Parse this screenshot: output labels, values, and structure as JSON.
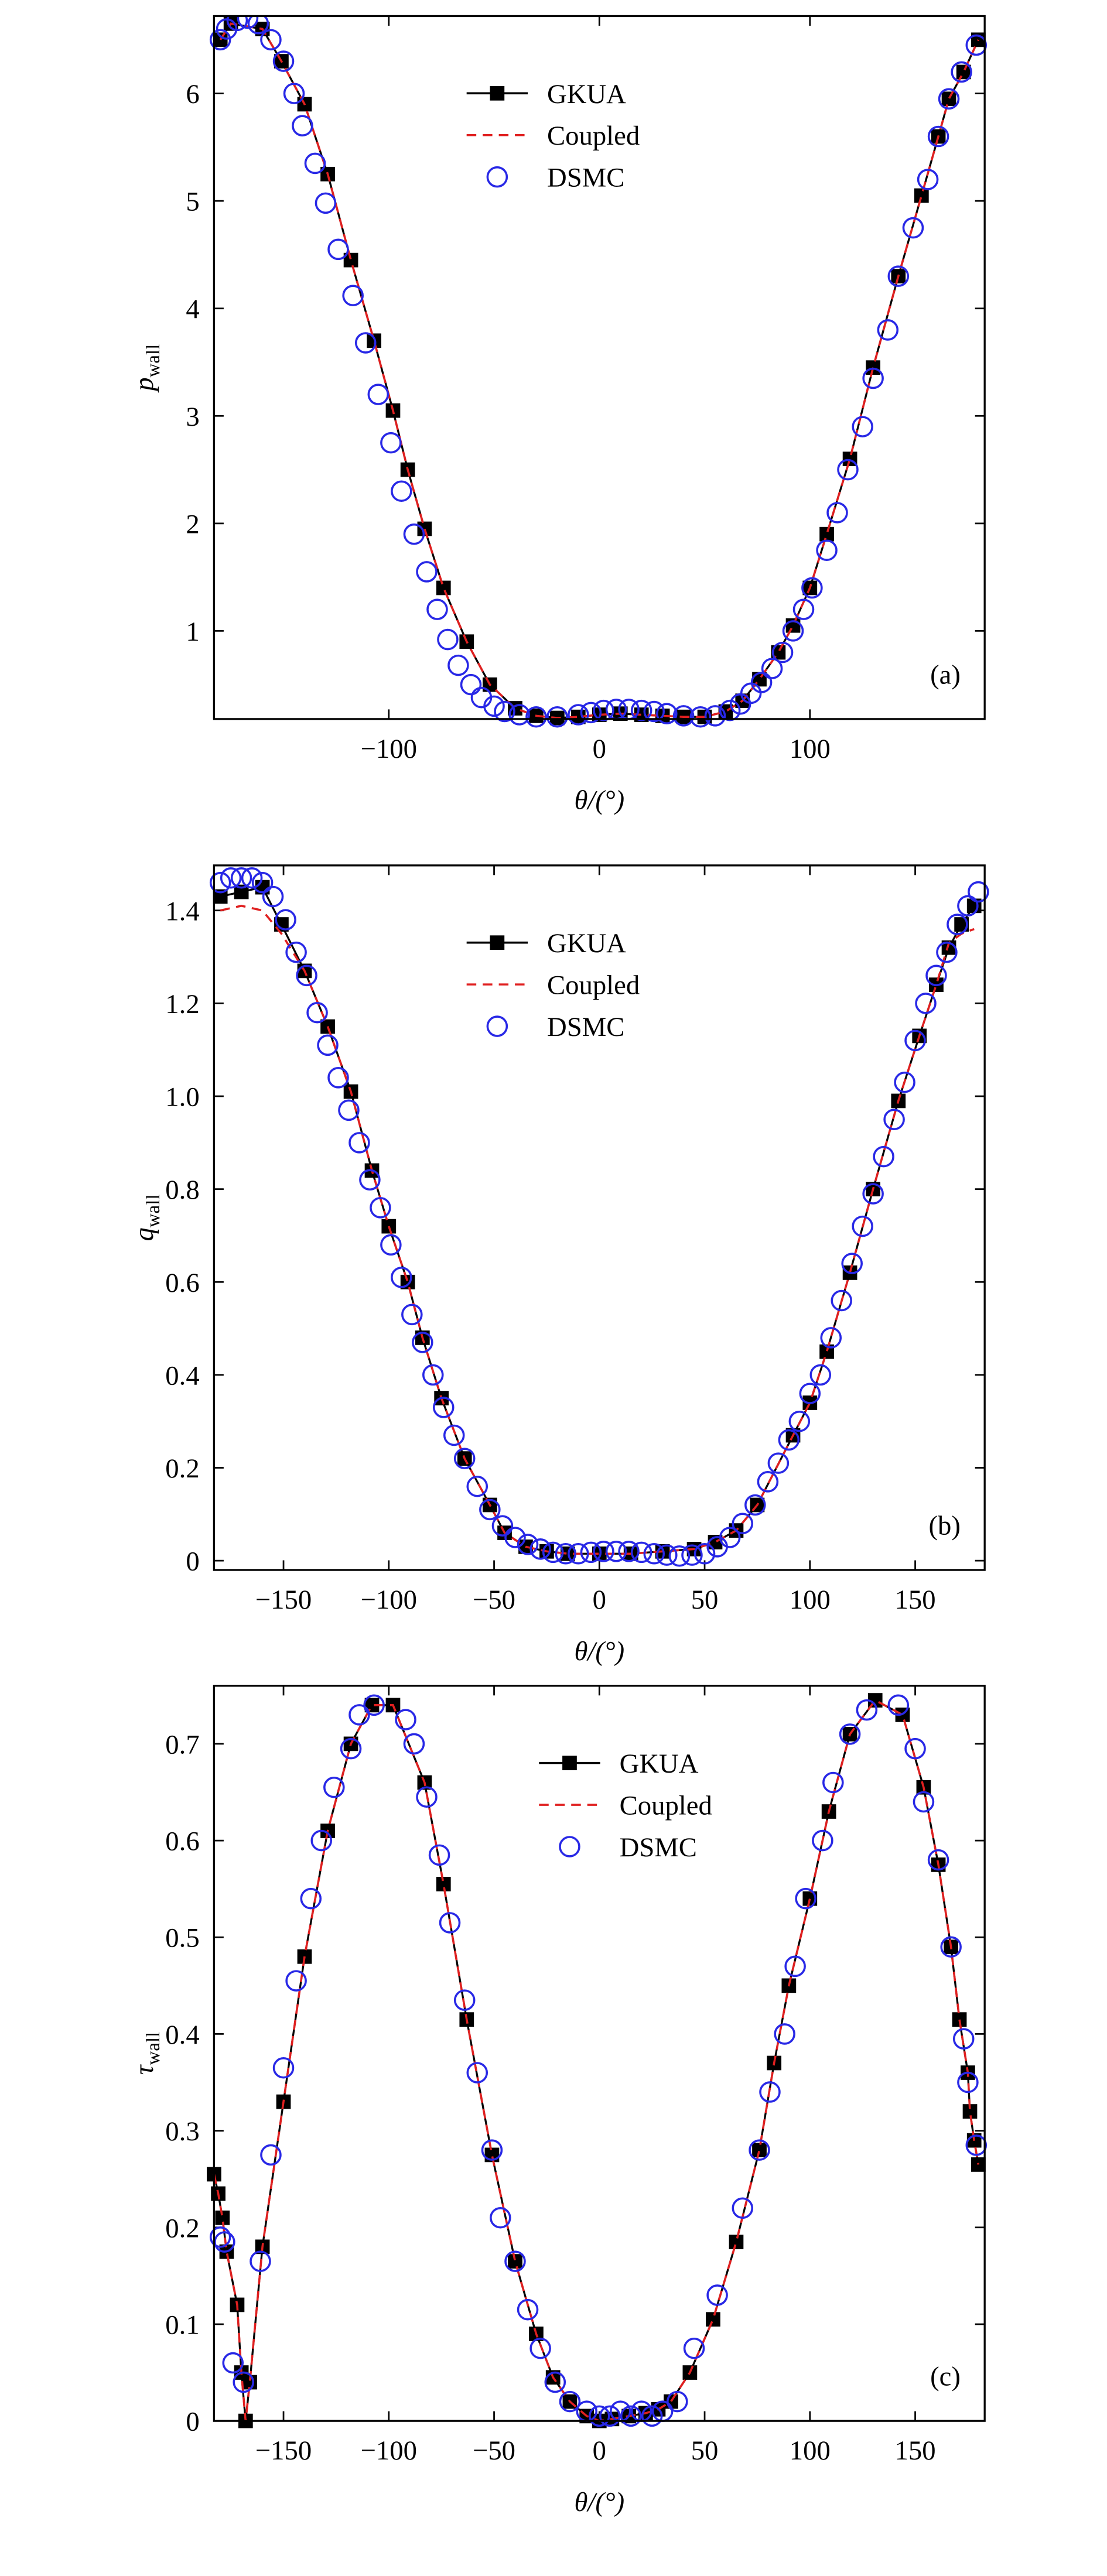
{
  "chart_data": [
    {
      "type": "line",
      "panel_label": "(a)",
      "xlabel": "θ/(°)",
      "ylabel": "p",
      "ylabel_sub": "wall",
      "xlim": [
        -183,
        183
      ],
      "ylim": [
        0.18,
        6.72
      ],
      "xticks": [
        {
          "value": -100,
          "label": "−100"
        },
        0,
        100
      ],
      "yticks": [
        1,
        2,
        3,
        4,
        5,
        6
      ],
      "legend": "upper center",
      "series": [
        {
          "name": "GKUA",
          "color": "#000000",
          "marker": "square",
          "dash": false,
          "x": [
            -180,
            -175,
            -160,
            -151,
            -140,
            -129,
            -118,
            -107,
            -98,
            -91,
            -83,
            -74,
            -63,
            -52,
            -40,
            -30,
            -20,
            -10,
            0,
            10,
            20,
            30,
            40,
            50,
            60,
            68,
            76,
            85,
            92,
            100,
            108,
            119,
            130,
            142,
            153,
            161,
            166,
            173,
            180
          ],
          "values": [
            6.5,
            6.65,
            6.6,
            6.3,
            5.9,
            5.25,
            4.45,
            3.7,
            3.05,
            2.5,
            1.95,
            1.4,
            0.9,
            0.5,
            0.28,
            0.21,
            0.19,
            0.2,
            0.22,
            0.23,
            0.22,
            0.21,
            0.2,
            0.2,
            0.25,
            0.35,
            0.55,
            0.8,
            1.05,
            1.4,
            1.9,
            2.6,
            3.45,
            4.3,
            5.05,
            5.6,
            5.95,
            6.2,
            6.5
          ]
        },
        {
          "name": "Coupled",
          "color": "#e02020",
          "marker": "none",
          "dash": true,
          "x": [
            -180,
            -175,
            -160,
            -151,
            -140,
            -129,
            -118,
            -107,
            -98,
            -91,
            -83,
            -74,
            -63,
            -52,
            -40,
            -30,
            -20,
            -10,
            0,
            10,
            20,
            30,
            40,
            50,
            60,
            68,
            76,
            85,
            92,
            100,
            108,
            119,
            130,
            142,
            153,
            161,
            166,
            173,
            180
          ],
          "values": [
            6.5,
            6.65,
            6.6,
            6.3,
            5.9,
            5.25,
            4.45,
            3.7,
            3.05,
            2.5,
            1.95,
            1.4,
            0.9,
            0.5,
            0.28,
            0.21,
            0.19,
            0.2,
            0.22,
            0.23,
            0.22,
            0.21,
            0.2,
            0.2,
            0.25,
            0.35,
            0.55,
            0.8,
            1.05,
            1.4,
            1.9,
            2.6,
            3.45,
            4.3,
            5.05,
            5.6,
            5.95,
            6.2,
            6.5
          ]
        },
        {
          "name": "DSMC",
          "color": "#2828e6",
          "marker": "circle",
          "dash": false,
          "x": [
            -180,
            -177,
            -172,
            -167,
            -162,
            -156,
            -150,
            -145,
            -141,
            -135,
            -130,
            -124,
            -117,
            -111,
            -105,
            -99,
            -94,
            -88,
            -82,
            -77,
            -72,
            -67,
            -61,
            -56,
            -50,
            -45,
            -38,
            -30,
            -20,
            -10,
            -4,
            2,
            8,
            14,
            20,
            26,
            32,
            40,
            48,
            55,
            62,
            67,
            72,
            77,
            82,
            87,
            92,
            97,
            101,
            108,
            113,
            118,
            125,
            130,
            137,
            142,
            149,
            156,
            161,
            166,
            172,
            179
          ],
          "values": [
            6.5,
            6.6,
            6.68,
            6.7,
            6.65,
            6.5,
            6.3,
            6.0,
            5.7,
            5.35,
            4.98,
            4.55,
            4.12,
            3.68,
            3.2,
            2.75,
            2.3,
            1.9,
            1.55,
            1.2,
            0.92,
            0.68,
            0.5,
            0.38,
            0.3,
            0.25,
            0.22,
            0.2,
            0.2,
            0.22,
            0.24,
            0.26,
            0.27,
            0.27,
            0.26,
            0.25,
            0.23,
            0.21,
            0.2,
            0.21,
            0.26,
            0.32,
            0.42,
            0.52,
            0.65,
            0.8,
            1.0,
            1.2,
            1.4,
            1.75,
            2.1,
            2.5,
            2.9,
            3.35,
            3.8,
            4.3,
            4.75,
            5.2,
            5.6,
            5.95,
            6.2,
            6.45
          ]
        }
      ]
    },
    {
      "type": "line",
      "panel_label": "(b)",
      "xlabel": "θ/(°)",
      "ylabel": "q",
      "ylabel_sub": "wall",
      "xlim": [
        -183,
        183
      ],
      "ylim": [
        -0.02,
        1.497
      ],
      "xticks": [
        {
          "value": -150,
          "label": "−150"
        },
        {
          "value": -100,
          "label": "−100"
        },
        {
          "value": -50,
          "label": "−50"
        },
        0,
        50,
        100,
        150
      ],
      "yticks": [
        0,
        0.2,
        0.4,
        0.6,
        0.8,
        {
          "value": 1,
          "label": "1.0"
        },
        1.2,
        1.4
      ],
      "legend": "upper center",
      "series": [
        {
          "name": "GKUA",
          "color": "#000000",
          "marker": "square",
          "dash": false,
          "x": [
            -180,
            -170,
            -160,
            -151,
            -140,
            -129,
            -118,
            -108,
            -100,
            -91,
            -84,
            -75,
            -64,
            -52,
            -45,
            -35,
            -25,
            -15,
            0,
            15,
            30,
            45,
            55,
            65,
            75,
            92,
            100,
            108,
            119,
            130,
            142,
            152,
            160,
            166,
            172,
            178
          ],
          "values": [
            1.43,
            1.44,
            1.45,
            1.37,
            1.27,
            1.15,
            1.01,
            0.84,
            0.72,
            0.6,
            0.48,
            0.35,
            0.22,
            0.12,
            0.06,
            0.03,
            0.02,
            0.015,
            0.015,
            0.015,
            0.02,
            0.025,
            0.04,
            0.065,
            0.12,
            0.27,
            0.34,
            0.45,
            0.62,
            0.8,
            0.99,
            1.13,
            1.24,
            1.32,
            1.37,
            1.41
          ]
        },
        {
          "name": "Coupled",
          "color": "#e02020",
          "marker": "none",
          "dash": true,
          "x": [
            -180,
            -170,
            -160,
            -151,
            -140,
            -129,
            -118,
            -108,
            -100,
            -91,
            -84,
            -75,
            -64,
            -52,
            -45,
            -35,
            -25,
            -15,
            0,
            15,
            30,
            45,
            55,
            65,
            75,
            92,
            100,
            108,
            119,
            130,
            142,
            152,
            160,
            166,
            172,
            178
          ],
          "values": [
            1.4,
            1.41,
            1.4,
            1.35,
            1.27,
            1.15,
            1.01,
            0.84,
            0.72,
            0.6,
            0.48,
            0.35,
            0.22,
            0.12,
            0.06,
            0.03,
            0.02,
            0.015,
            0.015,
            0.015,
            0.02,
            0.025,
            0.04,
            0.065,
            0.12,
            0.27,
            0.34,
            0.45,
            0.62,
            0.8,
            0.99,
            1.13,
            1.24,
            1.33,
            1.35,
            1.36
          ]
        },
        {
          "name": "DSMC",
          "color": "#2828e6",
          "marker": "circle",
          "dash": false,
          "x": [
            -180,
            -175,
            -170,
            -165,
            -160,
            -155,
            -149,
            -144,
            -139,
            -134,
            -129,
            -124,
            -119,
            -114,
            -109,
            -104,
            -99,
            -94,
            -89,
            -84,
            -79,
            -74,
            -69,
            -64,
            -58,
            -52,
            -46,
            -40,
            -34,
            -28,
            -22,
            -16,
            -10,
            -4,
            2,
            8,
            14,
            20,
            26,
            32,
            38,
            44,
            50,
            56,
            62,
            68,
            74,
            80,
            85,
            90,
            95,
            100,
            105,
            110,
            115,
            120,
            125,
            130,
            135,
            140,
            145,
            150,
            155,
            160,
            165,
            170,
            175,
            180
          ],
          "values": [
            1.46,
            1.47,
            1.47,
            1.47,
            1.46,
            1.43,
            1.38,
            1.31,
            1.26,
            1.18,
            1.11,
            1.04,
            0.97,
            0.9,
            0.82,
            0.76,
            0.68,
            0.61,
            0.53,
            0.47,
            0.4,
            0.33,
            0.27,
            0.22,
            0.16,
            0.11,
            0.075,
            0.05,
            0.035,
            0.025,
            0.018,
            0.015,
            0.015,
            0.018,
            0.02,
            0.02,
            0.02,
            0.018,
            0.015,
            0.012,
            0.01,
            0.012,
            0.015,
            0.03,
            0.05,
            0.08,
            0.12,
            0.17,
            0.21,
            0.26,
            0.3,
            0.36,
            0.4,
            0.48,
            0.56,
            0.64,
            0.72,
            0.79,
            0.87,
            0.95,
            1.03,
            1.12,
            1.2,
            1.26,
            1.31,
            1.37,
            1.41,
            1.44
          ]
        }
      ]
    },
    {
      "type": "line",
      "panel_label": "(c)",
      "xlabel": "θ/(°)",
      "ylabel": "τ",
      "ylabel_sub": "wall",
      "xlim": [
        -183,
        183
      ],
      "ylim": [
        0,
        0.76
      ],
      "xticks": [
        {
          "value": -150,
          "label": "−150"
        },
        {
          "value": -100,
          "label": "−100"
        },
        {
          "value": -50,
          "label": "−50"
        },
        0,
        50,
        100,
        150
      ],
      "yticks": [
        0,
        0.1,
        0.2,
        0.3,
        0.4,
        0.5,
        0.6,
        0.7
      ],
      "legend": "upper right",
      "series": [
        {
          "name": "GKUA",
          "color": "#000000",
          "marker": "square",
          "dash": false,
          "x": [
            -183,
            -181,
            -179,
            -177,
            -172,
            -170,
            -168,
            -166,
            -160,
            -150,
            -140,
            -129,
            -118,
            -108,
            -98,
            -83,
            -74,
            -63,
            -51,
            -40,
            -30,
            -22,
            -14,
            -6,
            0,
            6,
            14,
            22,
            28,
            34,
            43,
            54,
            65,
            76,
            83,
            90,
            100,
            109,
            119,
            131,
            144,
            154,
            161,
            167,
            171,
            175,
            176,
            178,
            180
          ],
          "values": [
            0.255,
            0.235,
            0.21,
            0.175,
            0.12,
            0.05,
            0,
            0.04,
            0.18,
            0.33,
            0.48,
            0.61,
            0.7,
            0.74,
            0.74,
            0.66,
            0.555,
            0.415,
            0.275,
            0.165,
            0.09,
            0.045,
            0.02,
            0.005,
            0,
            0.002,
            0.005,
            0.008,
            0.012,
            0.02,
            0.05,
            0.105,
            0.185,
            0.28,
            0.37,
            0.45,
            0.54,
            0.63,
            0.71,
            0.745,
            0.73,
            0.655,
            0.575,
            0.49,
            0.415,
            0.36,
            0.32,
            0.29,
            0.265
          ]
        },
        {
          "name": "Coupled",
          "color": "#e02020",
          "marker": "none",
          "dash": true,
          "x": [
            -183,
            -181,
            -179,
            -177,
            -172,
            -170,
            -168,
            -166,
            -160,
            -150,
            -140,
            -129,
            -118,
            -108,
            -98,
            -83,
            -74,
            -63,
            -51,
            -40,
            -30,
            -22,
            -14,
            -6,
            0,
            6,
            14,
            22,
            28,
            34,
            43,
            54,
            65,
            76,
            83,
            90,
            100,
            109,
            119,
            131,
            144,
            154,
            161,
            167,
            171,
            175,
            176,
            178,
            180
          ],
          "values": [
            0.255,
            0.235,
            0.21,
            0.175,
            0.12,
            0.05,
            0,
            0.04,
            0.18,
            0.33,
            0.48,
            0.61,
            0.7,
            0.74,
            0.74,
            0.66,
            0.555,
            0.415,
            0.275,
            0.165,
            0.09,
            0.045,
            0.02,
            0.005,
            0,
            0.002,
            0.005,
            0.008,
            0.012,
            0.02,
            0.05,
            0.105,
            0.185,
            0.28,
            0.37,
            0.45,
            0.54,
            0.63,
            0.71,
            0.745,
            0.73,
            0.655,
            0.575,
            0.49,
            0.415,
            0.36,
            0.32,
            0.29,
            0.265
          ]
        },
        {
          "name": "DSMC",
          "color": "#2828e6",
          "marker": "circle",
          "dash": false,
          "x": [
            -180,
            -178,
            -174,
            -169,
            -161,
            -156,
            -150,
            -144,
            -137,
            -132,
            -126,
            -118,
            -114,
            -107,
            -92,
            -88,
            -82,
            -76,
            -71,
            -64,
            -58,
            -51,
            -47,
            -40,
            -34,
            -28,
            -21,
            -14,
            -6,
            0,
            5,
            10,
            15,
            20,
            25,
            30,
            37,
            45,
            56,
            68,
            76,
            81,
            88,
            93,
            98,
            106,
            111,
            119,
            127,
            142,
            150,
            154,
            161,
            167,
            173,
            175,
            179
          ],
          "values": [
            0.19,
            0.185,
            0.06,
            0.04,
            0.165,
            0.275,
            0.365,
            0.455,
            0.54,
            0.6,
            0.655,
            0.695,
            0.73,
            0.74,
            0.725,
            0.7,
            0.645,
            0.585,
            0.515,
            0.435,
            0.36,
            0.28,
            0.21,
            0.165,
            0.115,
            0.075,
            0.04,
            0.02,
            0.01,
            0.005,
            0.005,
            0.01,
            0.005,
            0.01,
            0.005,
            0.01,
            0.02,
            0.075,
            0.13,
            0.22,
            0.28,
            0.34,
            0.4,
            0.47,
            0.54,
            0.6,
            0.66,
            0.71,
            0.735,
            0.74,
            0.695,
            0.64,
            0.58,
            0.49,
            0.395,
            0.35,
            0.285
          ]
        }
      ]
    }
  ]
}
